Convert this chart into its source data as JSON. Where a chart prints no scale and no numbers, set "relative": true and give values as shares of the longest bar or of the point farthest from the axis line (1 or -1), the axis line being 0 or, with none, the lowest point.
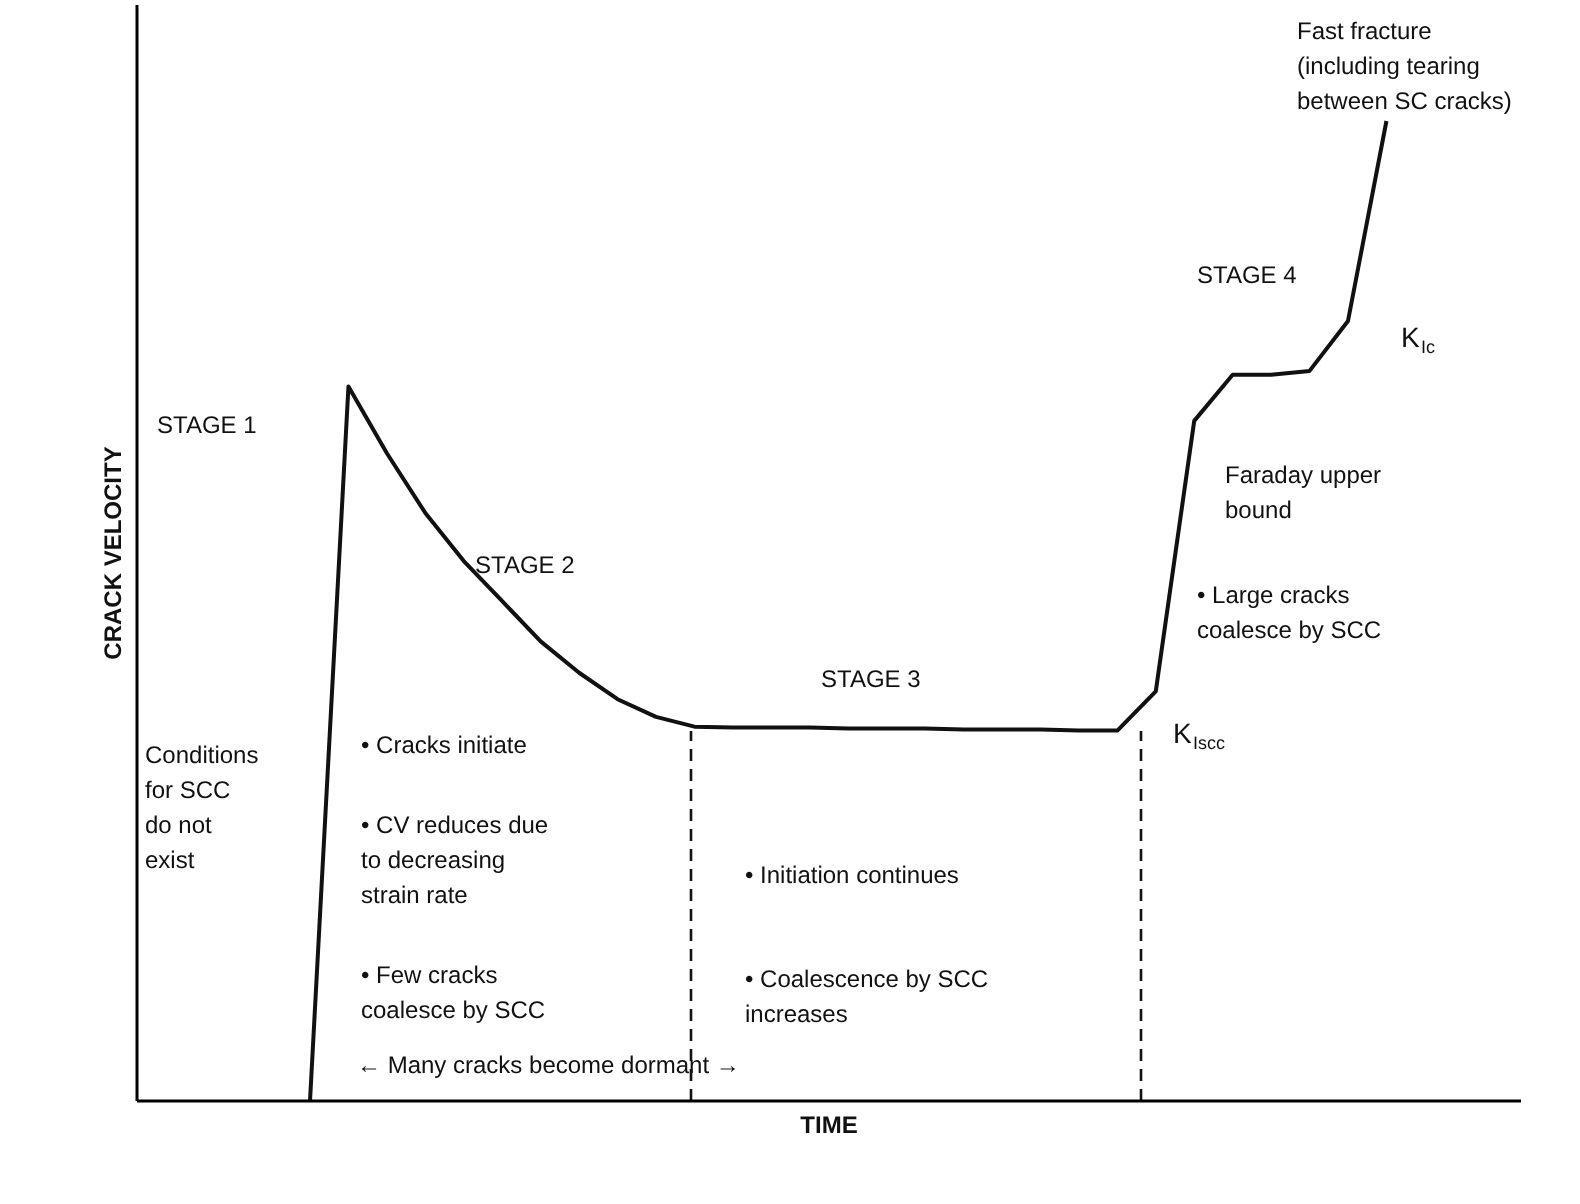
{
  "chart_data": {
    "type": "line",
    "relative": true,
    "xlabel": "TIME",
    "ylabel": "CRACK VELOCITY",
    "categories": [
      null,
      null,
      null,
      null,
      null,
      null,
      null,
      null,
      null,
      null,
      null,
      null,
      null,
      null,
      null,
      null,
      null,
      null,
      null,
      null,
      null,
      null,
      null,
      null,
      null,
      null,
      null,
      null,
      null,
      null,
      null,
      null,
      null,
      null,
      null,
      null
    ],
    "values": [
      null,
      null,
      null,
      null,
      0,
      0.729,
      0.661,
      0.6,
      0.551,
      0.51,
      0.469,
      0.437,
      0.41,
      0.392,
      0.382,
      0.381,
      0.381,
      0.381,
      0.38,
      0.38,
      0.38,
      0.379,
      0.379,
      0.379,
      0.378,
      0.378,
      0.418,
      0.694,
      0.741,
      0.741,
      0.745,
      0.796,
      1.0,
      null,
      null,
      null
    ],
    "color": "#111111",
    "tick_labels": false,
    "annotations": [
      "STAGE 1",
      "STAGE 2",
      "STAGE 3",
      "STAGE 4",
      "K$_{Ic}$",
      "Fast fracture\n(including tearing\nbetween SC cracks)",
      "Faraday upper\nbound",
      "• Large cracks\n  coalesce by SCC",
      "K$_{Iscc}$",
      "Conditions\nfor SCC\ndo not\nexist",
      "• Cracks initiate",
      "• CV reduces due\n  to decreasing\n  strain rate",
      "• Few cracks\n  coalesce by SCC",
      "• Initiation continues",
      "• Coalescence by SCC\n  increases",
      "← Many cracks become dormant →"
    ]
  }
}
